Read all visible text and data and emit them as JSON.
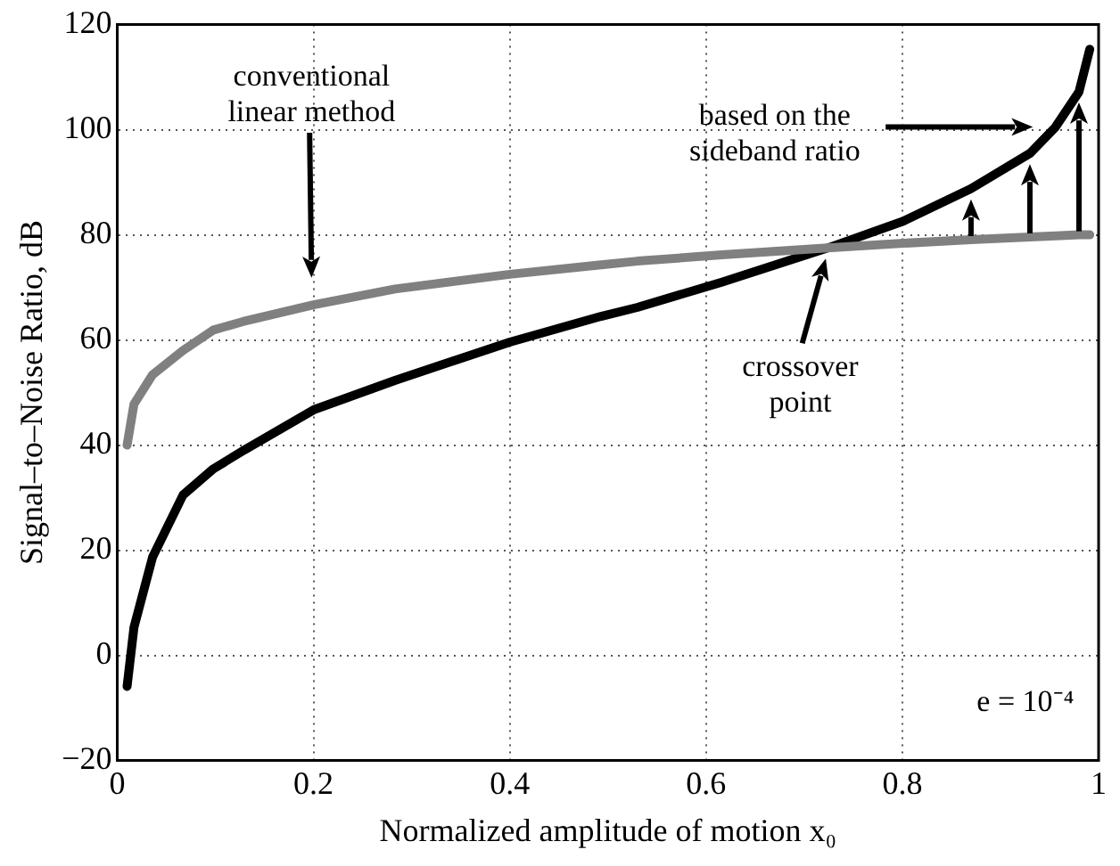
{
  "chart_data": {
    "type": "line",
    "xlabel": "Normalized amplitude of motion x₀",
    "ylabel": "Signal–to–Noise Ratio, dB",
    "x": [
      0.01,
      0.017,
      0.036,
      0.067,
      0.098,
      0.128,
      0.2,
      0.283,
      0.4,
      0.493,
      0.53,
      0.616,
      0.724,
      0.801,
      0.87,
      0.93,
      0.956,
      0.98,
      0.991
    ],
    "series": [
      {
        "color": "#808080",
        "values": [
          40,
          47.8,
          53.4,
          58,
          61.9,
          63.5,
          66.7,
          69.7,
          72.5,
          74.3,
          75,
          76.2,
          77.5,
          78.4,
          79.1,
          79.6,
          79.8,
          80,
          80
        ]
      },
      {
        "color": "#000000",
        "values": [
          -5.9,
          5.3,
          18.7,
          30.5,
          35.5,
          38.9,
          46.7,
          52.3,
          59.6,
          64.5,
          66.2,
          71,
          77.5,
          82.6,
          88.8,
          95.5,
          100.5,
          107.2,
          115.3
        ]
      }
    ],
    "xlim": [
      0,
      1
    ],
    "xticks": [
      0,
      0.2,
      0.4,
      0.6,
      0.8,
      1
    ],
    "ylim": [
      -20,
      120
    ],
    "yticks": [
      {
        "value": -20,
        "label": "−20"
      },
      0,
      20,
      40,
      60,
      80,
      100,
      120
    ],
    "grid": true,
    "legend": false,
    "marker": "none",
    "line_style": "solid",
    "annotations": [
      "conventional linear method",
      "crossover point",
      "based on the sideband ratio",
      "e = 10⁻⁴"
    ]
  }
}
